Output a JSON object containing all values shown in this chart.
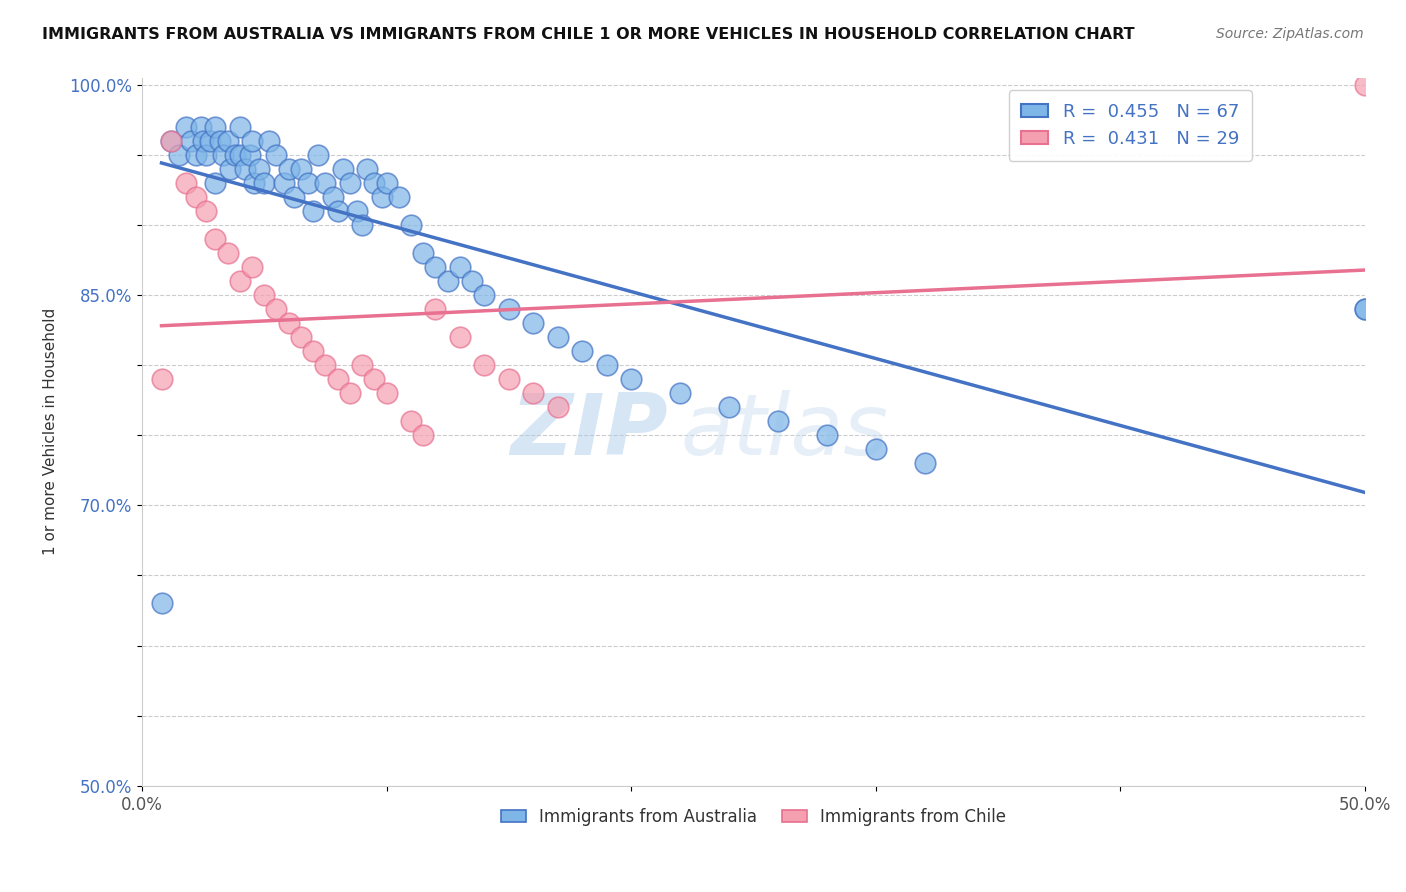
{
  "title": "IMMIGRANTS FROM AUSTRALIA VS IMMIGRANTS FROM CHILE 1 OR MORE VEHICLES IN HOUSEHOLD CORRELATION CHART",
  "source": "Source: ZipAtlas.com",
  "ylabel": "1 or more Vehicles in Household",
  "xlim": [
    0.0,
    0.5
  ],
  "ylim": [
    0.5,
    1.005
  ],
  "legend_labels": [
    "Immigrants from Australia",
    "Immigrants from Chile"
  ],
  "R_australia": 0.455,
  "N_australia": 67,
  "R_chile": 0.431,
  "N_chile": 29,
  "color_australia": "#7EB6E8",
  "color_chile": "#F4A0B0",
  "color_australia_line": "#4472C4",
  "color_chile_line": "#E87090",
  "australia_x": [
    0.008,
    0.012,
    0.015,
    0.018,
    0.02,
    0.022,
    0.024,
    0.025,
    0.026,
    0.028,
    0.03,
    0.03,
    0.032,
    0.033,
    0.035,
    0.036,
    0.038,
    0.04,
    0.04,
    0.042,
    0.044,
    0.045,
    0.046,
    0.048,
    0.05,
    0.052,
    0.055,
    0.058,
    0.06,
    0.062,
    0.065,
    0.068,
    0.07,
    0.072,
    0.075,
    0.078,
    0.08,
    0.082,
    0.085,
    0.088,
    0.09,
    0.092,
    0.095,
    0.098,
    0.1,
    0.105,
    0.11,
    0.115,
    0.12,
    0.125,
    0.13,
    0.135,
    0.14,
    0.15,
    0.16,
    0.17,
    0.18,
    0.19,
    0.2,
    0.22,
    0.24,
    0.26,
    0.28,
    0.3,
    0.32,
    0.5,
    0.5
  ],
  "australia_y": [
    0.63,
    0.96,
    0.95,
    0.97,
    0.96,
    0.95,
    0.97,
    0.96,
    0.95,
    0.96,
    0.93,
    0.97,
    0.96,
    0.95,
    0.96,
    0.94,
    0.95,
    0.95,
    0.97,
    0.94,
    0.95,
    0.96,
    0.93,
    0.94,
    0.93,
    0.96,
    0.95,
    0.93,
    0.94,
    0.92,
    0.94,
    0.93,
    0.91,
    0.95,
    0.93,
    0.92,
    0.91,
    0.94,
    0.93,
    0.91,
    0.9,
    0.94,
    0.93,
    0.92,
    0.93,
    0.92,
    0.9,
    0.88,
    0.87,
    0.86,
    0.87,
    0.86,
    0.85,
    0.84,
    0.83,
    0.82,
    0.81,
    0.8,
    0.79,
    0.78,
    0.77,
    0.76,
    0.75,
    0.74,
    0.73,
    0.84,
    0.84
  ],
  "chile_x": [
    0.008,
    0.012,
    0.018,
    0.022,
    0.026,
    0.03,
    0.035,
    0.04,
    0.045,
    0.05,
    0.055,
    0.06,
    0.065,
    0.07,
    0.075,
    0.08,
    0.085,
    0.09,
    0.095,
    0.1,
    0.11,
    0.115,
    0.12,
    0.13,
    0.14,
    0.15,
    0.16,
    0.17,
    0.5
  ],
  "chile_y": [
    0.79,
    0.96,
    0.93,
    0.92,
    0.91,
    0.89,
    0.88,
    0.86,
    0.87,
    0.85,
    0.84,
    0.83,
    0.82,
    0.81,
    0.8,
    0.79,
    0.78,
    0.8,
    0.79,
    0.78,
    0.76,
    0.75,
    0.84,
    0.82,
    0.8,
    0.79,
    0.78,
    0.77,
    1.0
  ],
  "watermark_zip": "ZIP",
  "watermark_atlas": "atlas",
  "background_color": "#FFFFFF",
  "grid_color": "#CCCCCC"
}
